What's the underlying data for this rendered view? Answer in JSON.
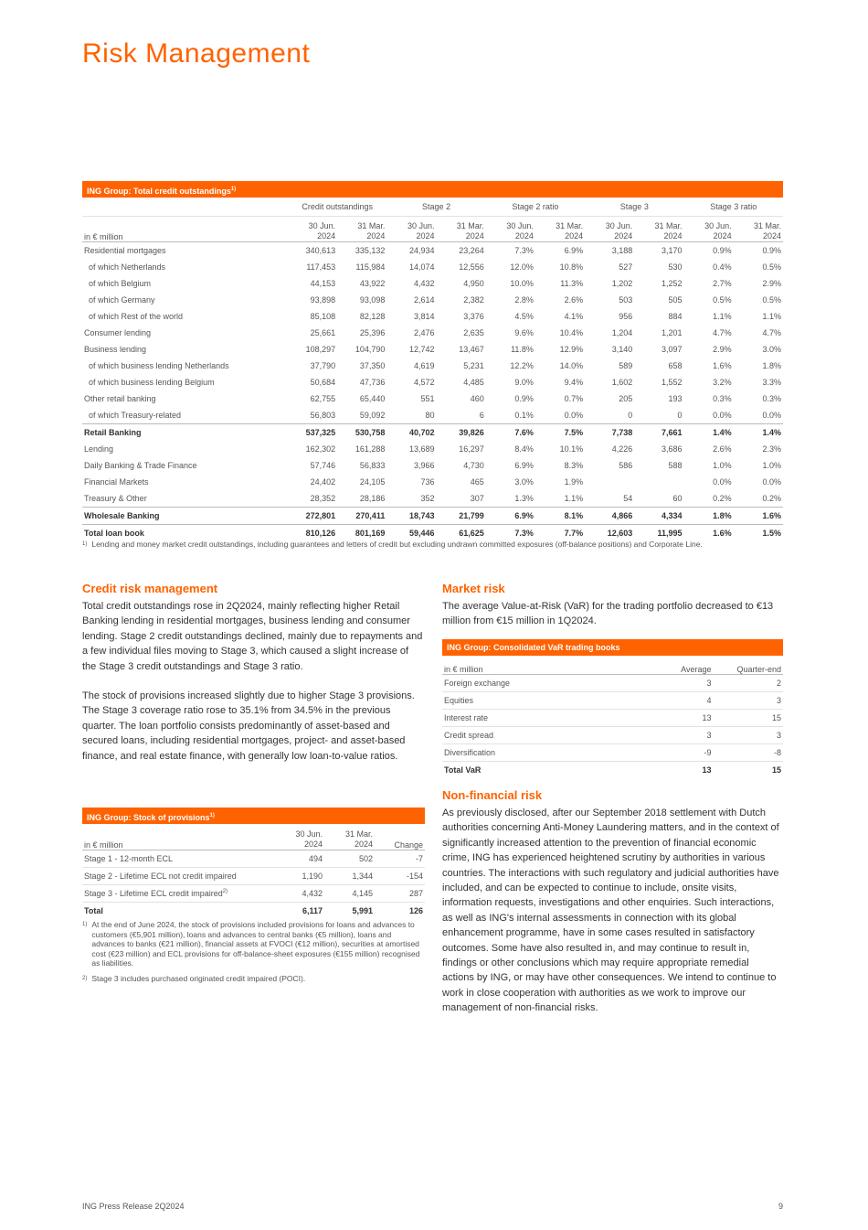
{
  "header": {
    "title": "Risk Management"
  },
  "credit_table": {
    "title": "ING Group: Total credit outstandings",
    "title_note": "1)",
    "unit": "in € million",
    "groups": [
      {
        "name": "Credit outstandings",
        "columns": [
          "30 Jun. 2024",
          "31 Mar. 2024"
        ]
      },
      {
        "name": "Stage 2",
        "columns": [
          "30 Jun. 2024",
          "31 Mar. 2024"
        ]
      },
      {
        "name": "Stage 2 ratio",
        "columns": [
          "30 Jun. 2024",
          "31 Mar. 2024"
        ]
      },
      {
        "name": "Stage 3",
        "columns": [
          "30 Jun. 2024",
          "31 Mar. 2024"
        ]
      },
      {
        "name": "Stage 3 ratio",
        "columns": [
          "30 Jun. 2024",
          "31 Mar. 2024"
        ]
      }
    ],
    "rows": [
      {
        "label": "Residential mortgages",
        "cells": [
          "340,613",
          "335,132",
          "24,934",
          "23,264",
          "7.3%",
          "6.9%",
          "3,188",
          "3,170",
          "0.9%",
          "0.9%"
        ]
      },
      {
        "label": "of which Netherlands",
        "cells": [
          "117,453",
          "115,984",
          "14,074",
          "12,556",
          "12.0%",
          "10.8%",
          "527",
          "530",
          "0.4%",
          "0.5%"
        ]
      },
      {
        "label": "of which Belgium",
        "cells": [
          "44,153",
          "43,922",
          "4,432",
          "4,950",
          "10.0%",
          "11.3%",
          "1,202",
          "1,252",
          "2.7%",
          "2.9%"
        ]
      },
      {
        "label": "of which Germany",
        "cells": [
          "93,898",
          "93,098",
          "2,614",
          "2,382",
          "2.8%",
          "2.6%",
          "503",
          "505",
          "0.5%",
          "0.5%"
        ]
      },
      {
        "label": "of which Rest of the world",
        "cells": [
          "85,108",
          "82,128",
          "3,814",
          "3,376",
          "4.5%",
          "4.1%",
          "956",
          "884",
          "1.1%",
          "1.1%"
        ]
      },
      {
        "label": "Consumer lending",
        "cells": [
          "25,661",
          "25,396",
          "2,476",
          "2,635",
          "9.6%",
          "10.4%",
          "1,204",
          "1,201",
          "4.7%",
          "4.7%"
        ]
      },
      {
        "label": "Business lending",
        "cells": [
          "108,297",
          "104,790",
          "12,742",
          "13,467",
          "11.8%",
          "12.9%",
          "3,140",
          "3,097",
          "2.9%",
          "3.0%"
        ]
      },
      {
        "label": "of which business lending Netherlands",
        "cells": [
          "37,790",
          "37,350",
          "4,619",
          "5,231",
          "12.2%",
          "14.0%",
          "589",
          "658",
          "1.6%",
          "1.8%"
        ]
      },
      {
        "label": "of which business lending Belgium",
        "cells": [
          "50,684",
          "47,736",
          "4,572",
          "4,485",
          "9.0%",
          "9.4%",
          "1,602",
          "1,552",
          "3.2%",
          "3.3%"
        ]
      },
      {
        "label": "Other retail banking",
        "cells": [
          "62,755",
          "65,440",
          "551",
          "460",
          "0.9%",
          "0.7%",
          "205",
          "193",
          "0.3%",
          "0.3%"
        ]
      },
      {
        "label": "of which Treasury-related",
        "cells": [
          "56,803",
          "59,092",
          "80",
          "6",
          "0.1%",
          "0.0%",
          "0",
          "0",
          "0.0%",
          "0.0%"
        ]
      },
      {
        "label": "Retail Banking",
        "cells": [
          "537,325",
          "530,758",
          "40,702",
          "39,826",
          "7.6%",
          "7.5%",
          "7,738",
          "7,661",
          "1.4%",
          "1.4%"
        ]
      },
      {
        "label": "Lending",
        "cells": [
          "162,302",
          "161,288",
          "13,689",
          "16,297",
          "8.4%",
          "10.1%",
          "4,226",
          "3,686",
          "2.6%",
          "2.3%"
        ]
      },
      {
        "label": "Daily Banking & Trade Finance",
        "cells": [
          "57,746",
          "56,833",
          "3,966",
          "4,730",
          "6.9%",
          "8.3%",
          "586",
          "588",
          "1.0%",
          "1.0%"
        ]
      },
      {
        "label": "Financial Markets",
        "cells": [
          "24,402",
          "24,105",
          "736",
          "465",
          "3.0%",
          "1.9%",
          null,
          null,
          "0.0%",
          "0.0%"
        ]
      },
      {
        "label": "Treasury & Other",
        "cells": [
          "28,352",
          "28,186",
          "352",
          "307",
          "1.3%",
          "1.1%",
          "54",
          "60",
          "0.2%",
          "0.2%"
        ]
      },
      {
        "label": "Wholesale Banking",
        "cells": [
          "272,801",
          "270,411",
          "18,743",
          "21,799",
          "6.9%",
          "8.1%",
          "4,866",
          "4,334",
          "1.8%",
          "1.6%"
        ]
      },
      {
        "label": "Total loan book",
        "cells": [
          "810,126",
          "801,169",
          "59,446",
          "61,625",
          "7.3%",
          "7.7%",
          "12,603",
          "11,995",
          "1.6%",
          "1.5%"
        ]
      }
    ],
    "footnotes": [
      {
        "mark": "1)",
        "text": "Lending and money market credit outstandings, including guarantees and letters of credit but excluding undrawn committed exposures (off-balance positions) and Corporate Line."
      }
    ]
  },
  "credit_risk": {
    "heading": "Credit risk management",
    "paragraphs": [
      "Total credit outstandings rose in 2Q2024, mainly reflecting higher Retail Banking lending in residential mortgages, business lending and consumer lending. Stage 2 credit outstandings declined, mainly due to repayments and a few individual files moving to Stage 3, which caused a slight increase of the Stage 3 credit outstandings and Stage 3 ratio.",
      "The stock of provisions increased slightly due to higher Stage 3 provisions. The Stage 3 coverage ratio rose to 35.1% from 34.5% in the previous quarter. The loan portfolio consists predominantly of asset-based and secured loans, including residential mortgages, project- and asset-based finance, and real estate finance, with generally low loan-to-value ratios."
    ]
  },
  "provisions_table": {
    "title": "ING Group: Stock of provisions",
    "title_note": "1)",
    "columns": [
      "in € million",
      "30 Jun. 2024",
      "31 Mar. 2024",
      "Change"
    ],
    "rows": [
      {
        "label": "Stage 1 - 12-month ECL",
        "cells": [
          "494",
          "502",
          "-7"
        ]
      },
      {
        "label": "Stage 2 - Lifetime ECL not credit impaired",
        "cells": [
          "1,190",
          "1,344",
          "-154"
        ]
      },
      {
        "label": "Stage 3 - Lifetime ECL credit impaired",
        "note": "2)",
        "cells": [
          "4,432",
          "4,145",
          "287"
        ]
      },
      {
        "label": "Total",
        "cells": [
          "6,117",
          "5,991",
          "126"
        ]
      }
    ],
    "footnotes": [
      {
        "mark": "1)",
        "text": "At the end of June 2024, the stock of provisions included provisions for loans and advances to customers (€5,901 million), loans and advances to central banks (€5 million), loans and advances to banks (€21 million), financial assets at FVOCI (€12 million), securities at amortised cost (€23 million) and ECL provisions for off-balance-sheet exposures (€155 million) recognised as liabilities."
      },
      {
        "mark": "2)",
        "text": "Stage 3 includes purchased originated credit impaired (POCI)."
      }
    ]
  },
  "market_risk": {
    "heading": "Market risk",
    "paragraphs": [
      "The average Value-at-Risk (VaR) for the trading portfolio decreased to €13 million from €15 million in 1Q2024."
    ]
  },
  "var_table": {
    "title": "ING Group: Consolidated VaR trading books",
    "columns": [
      "in € million",
      "Average",
      "Quarter-end"
    ],
    "rows": [
      {
        "label": "Foreign exchange",
        "cells": [
          "3",
          "2"
        ]
      },
      {
        "label": "Equities",
        "cells": [
          "4",
          "3"
        ]
      },
      {
        "label": "Interest rate",
        "cells": [
          "13",
          "15"
        ]
      },
      {
        "label": "Credit spread",
        "cells": [
          "3",
          "3"
        ]
      },
      {
        "label": "Diversification",
        "cells": [
          "-9",
          "-8"
        ]
      },
      {
        "label": "Total VaR",
        "cells": [
          "13",
          "15"
        ]
      }
    ]
  },
  "non_financial_risk": {
    "heading": "Non-financial risk",
    "paragraphs": [
      "As previously disclosed, after our September 2018 settlement with Dutch authorities concerning Anti-Money Laundering matters, and in the context of significantly increased attention to the prevention of financial economic crime, ING has experienced heightened scrutiny by authorities in various countries. The interactions with such regulatory and judicial authorities have included, and can be expected to continue to include, onsite visits, information requests, investigations and other enquiries. Such interactions, as well as ING's internal assessments in connection with its global enhancement programme, have in some cases resulted in satisfactory outcomes. Some have also resulted in, and may continue to result in, findings or other conclusions which may require appropriate remedial actions by ING, or may have other consequences. We intend to continue to work in close cooperation with authorities as we work to improve our management of non-financial risks."
    ]
  },
  "footer": {
    "left": "ING Press Release 2Q2024",
    "page": "9"
  }
}
